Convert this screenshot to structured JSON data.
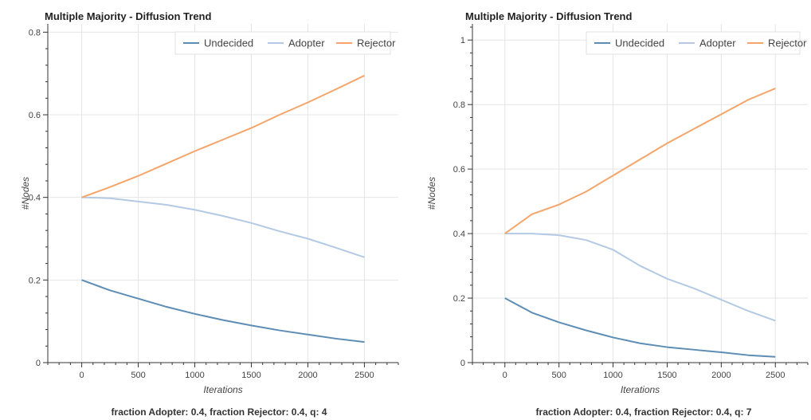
{
  "chart_data": [
    {
      "type": "line",
      "title": "Multiple Majority - Diffusion Trend",
      "xlabel": "Iterations",
      "ylabel": "#Nodes",
      "caption": "fraction Adopter: 0.4, fraction Rejector: 0.4, q: 4",
      "xlim": [
        -300,
        2800
      ],
      "ylim": [
        0,
        0.82
      ],
      "xticks": [
        0,
        500,
        1000,
        1500,
        2000,
        2500
      ],
      "yticks": [
        0,
        0.2,
        0.4,
        0.6,
        0.8
      ],
      "grid": true,
      "legend_position": "top-right",
      "x": [
        0,
        250,
        500,
        750,
        1000,
        1250,
        1500,
        1750,
        2000,
        2250,
        2500
      ],
      "series": [
        {
          "name": "Undecided",
          "color": "#5d8db5",
          "values": [
            0.2,
            0.175,
            0.155,
            0.135,
            0.118,
            0.103,
            0.09,
            0.078,
            0.068,
            0.058,
            0.05
          ]
        },
        {
          "name": "Adopter",
          "color": "#b3c9e4",
          "values": [
            0.4,
            0.398,
            0.39,
            0.382,
            0.37,
            0.355,
            0.338,
            0.318,
            0.3,
            0.278,
            0.255
          ]
        },
        {
          "name": "Rejector",
          "color": "#f5a56a",
          "values": [
            0.4,
            0.425,
            0.452,
            0.482,
            0.512,
            0.54,
            0.568,
            0.6,
            0.63,
            0.662,
            0.695
          ]
        }
      ]
    },
    {
      "type": "line",
      "title": "Multiple Majority - Diffusion Trend",
      "xlabel": "Iterations",
      "ylabel": "#Nodes",
      "caption": "fraction Adopter: 0.4, fraction Rejector: 0.4, q: 7",
      "xlim": [
        -300,
        2800
      ],
      "ylim": [
        0,
        1.05
      ],
      "xticks": [
        0,
        500,
        1000,
        1500,
        2000,
        2500
      ],
      "yticks": [
        0,
        0.2,
        0.4,
        0.6,
        0.8,
        1
      ],
      "grid": true,
      "legend_position": "top-right",
      "x": [
        0,
        250,
        500,
        750,
        1000,
        1250,
        1500,
        1750,
        2000,
        2250,
        2500
      ],
      "series": [
        {
          "name": "Undecided",
          "color": "#5d8db5",
          "values": [
            0.2,
            0.155,
            0.125,
            0.1,
            0.078,
            0.06,
            0.048,
            0.04,
            0.032,
            0.023,
            0.018
          ]
        },
        {
          "name": "Adopter",
          "color": "#b3c9e4",
          "values": [
            0.4,
            0.4,
            0.395,
            0.38,
            0.35,
            0.3,
            0.26,
            0.23,
            0.195,
            0.16,
            0.13
          ]
        },
        {
          "name": "Rejector",
          "color": "#f5a56a",
          "values": [
            0.4,
            0.46,
            0.49,
            0.53,
            0.58,
            0.63,
            0.68,
            0.725,
            0.77,
            0.815,
            0.85
          ]
        }
      ]
    }
  ]
}
